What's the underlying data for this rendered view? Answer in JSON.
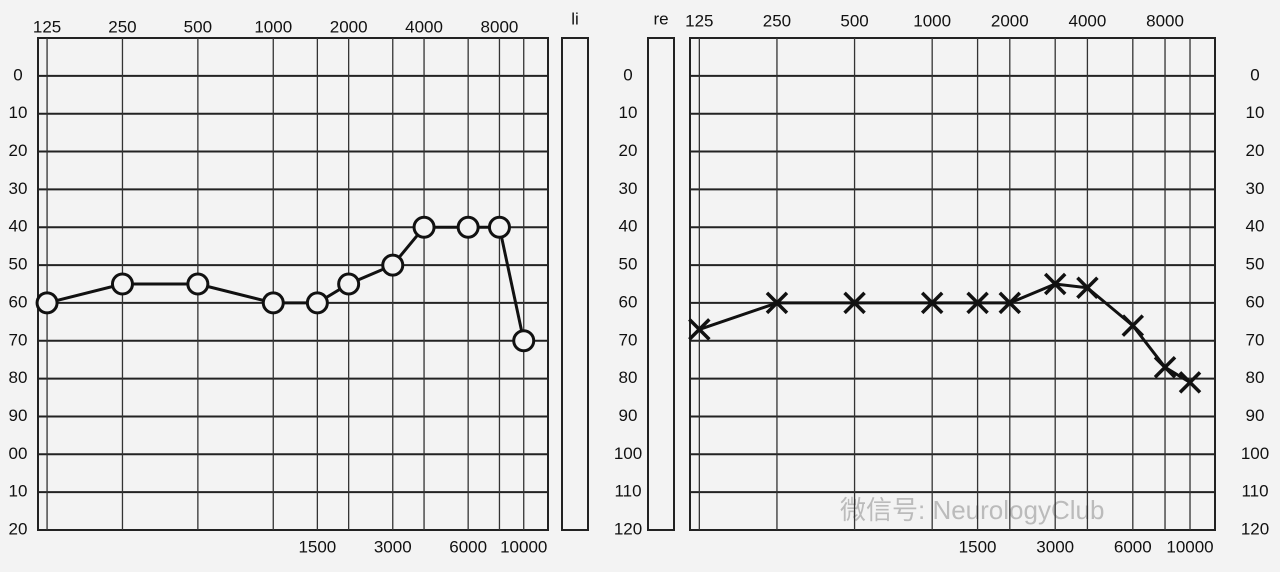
{
  "chart_data": [
    {
      "type": "line",
      "ear_label": "li",
      "x": [
        125,
        250,
        500,
        1000,
        1500,
        2000,
        3000,
        4000,
        6000,
        8000,
        10000
      ],
      "xscale": "log",
      "xlim": [
        115,
        12500
      ],
      "xticks_top": [
        125,
        250,
        500,
        1000,
        2000,
        4000,
        8000
      ],
      "xticks_bottom": [
        1500,
        3000,
        6000,
        10000
      ],
      "ylim": [
        -10,
        120
      ],
      "inverted": true,
      "yticks": [
        0,
        10,
        20,
        30,
        40,
        50,
        60,
        70,
        80,
        90,
        {
          "value": 100,
          "label": "00"
        },
        {
          "value": 110,
          "label": "10"
        },
        {
          "value": 120,
          "label": "20"
        }
      ],
      "grid": true,
      "series": [
        {
          "color": "#111111",
          "marker": "circle",
          "values": [
            60,
            55,
            55,
            60,
            60,
            55,
            50,
            40,
            40,
            40,
            70
          ]
        }
      ]
    },
    {
      "type": "line",
      "ear_label": "re",
      "x": [
        125,
        250,
        500,
        1000,
        1500,
        2000,
        3000,
        4000,
        6000,
        8000,
        10000
      ],
      "xscale": "log",
      "xlim": [
        115,
        12500
      ],
      "xticks_top": [
        125,
        250,
        500,
        1000,
        2000,
        4000,
        8000
      ],
      "xticks_bottom": [
        1500,
        3000,
        6000,
        10000
      ],
      "ylim": [
        -10,
        120
      ],
      "inverted": true,
      "yticks": [
        0,
        10,
        20,
        30,
        40,
        50,
        60,
        70,
        80,
        90,
        100,
        110,
        120
      ],
      "grid": true,
      "series": [
        {
          "color": "#111111",
          "marker": "x",
          "values": [
            67,
            60,
            60,
            60,
            60,
            60,
            55,
            56,
            66,
            77,
            81
          ]
        }
      ]
    }
  ],
  "watermark": "微信号: NeurologyClub"
}
